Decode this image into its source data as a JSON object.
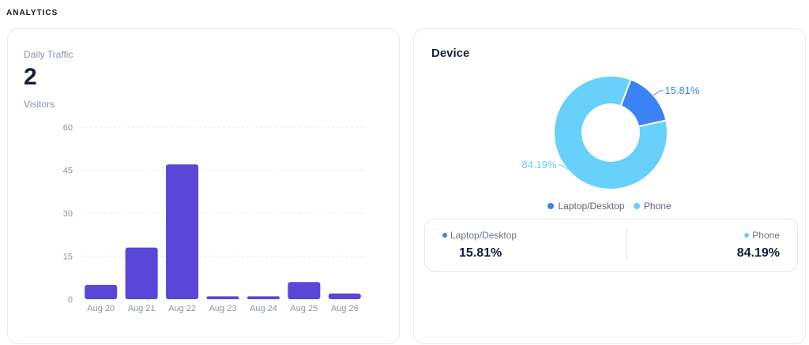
{
  "section": {
    "title": "ANALYTICS"
  },
  "traffic": {
    "label": "Daily Traffic",
    "value": "2",
    "unit": "Visitors",
    "chart_data": {
      "type": "bar",
      "categories": [
        "Aug 20",
        "Aug 21",
        "Aug 22",
        "Aug 23",
        "Aug 24",
        "Aug 25",
        "Aug 26"
      ],
      "values": [
        5,
        18,
        47,
        1,
        1,
        6,
        2
      ],
      "ylim": [
        0,
        60
      ],
      "yticks": [
        0,
        15,
        30,
        45,
        60
      ],
      "grid": true,
      "color": "#5a46d9"
    }
  },
  "device": {
    "title": "Device",
    "chart_data": {
      "type": "pie",
      "categories": [
        "Laptop/Desktop",
        "Phone"
      ],
      "values": [
        15.81,
        84.19
      ],
      "labels": [
        "15.81%",
        "84.19%"
      ],
      "colors": [
        "#3b82f6",
        "#67d0fb"
      ],
      "legend": "bottom",
      "donut": true
    },
    "legend": [
      {
        "label": "Laptop/Desktop",
        "color": "#3b82f6"
      },
      {
        "label": "Phone",
        "color": "#67d0fb"
      }
    ],
    "summary": {
      "left": {
        "label": "Laptop/Desktop",
        "value": "15.81%",
        "color": "#3b82f6"
      },
      "right": {
        "label": "Phone",
        "value": "84.19%",
        "color": "#67d0fb"
      }
    }
  }
}
